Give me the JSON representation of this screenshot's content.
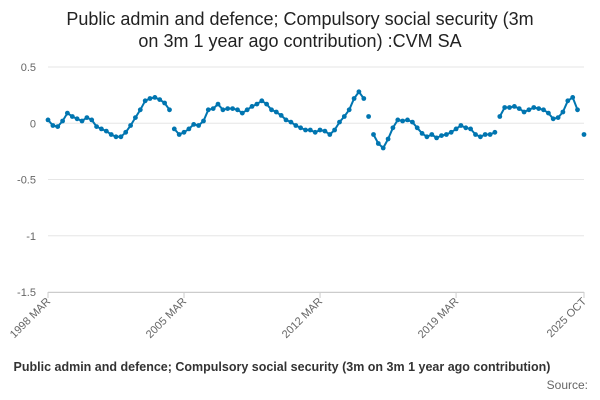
{
  "chart_data": {
    "type": "line",
    "title_lines": [
      "Public admin and defence; Compulsory social security (3m",
      "on 3m 1 year ago contribution) :CVM SA"
    ],
    "xlabel": "",
    "ylabel": "",
    "x_tick_labels": [
      "1998 MAR",
      "2005 MAR",
      "2012 MAR",
      "2019 MAR",
      "2025 OCT"
    ],
    "x_range": [
      "1998 MAR",
      "2025 OCT"
    ],
    "ylim": [
      -1.5,
      0.5
    ],
    "y_ticks": [
      0.5,
      0,
      -0.5,
      -1,
      -1.5
    ],
    "y_tick_labels": [
      "0.5",
      "0",
      "-0.5",
      "-1",
      "-1.5"
    ],
    "grid": true,
    "legend_placement": "bottom",
    "series": [
      {
        "name": "Public admin and defence; Compulsory social security (3m on 3m 1 year ago contribution)",
        "color": "#0075b0",
        "points": [
          [
            "1998 MAR",
            0.03
          ],
          [
            "1998 JUN",
            -0.02
          ],
          [
            "1998 SEP",
            -0.03
          ],
          [
            "1998 DEC",
            0.02
          ],
          [
            "1999 MAR",
            0.09
          ],
          [
            "1999 JUN",
            0.06
          ],
          [
            "1999 SEP",
            0.04
          ],
          [
            "1999 DEC",
            0.02
          ],
          [
            "2000 MAR",
            0.05
          ],
          [
            "2000 JUN",
            0.03
          ],
          [
            "2000 SEP",
            -0.03
          ],
          [
            "2000 DEC",
            -0.05
          ],
          [
            "2001 MAR",
            -0.07
          ],
          [
            "2001 JUN",
            -0.1
          ],
          [
            "2001 SEP",
            -0.12
          ],
          [
            "2001 DEC",
            -0.12
          ],
          [
            "2002 MAR",
            -0.08
          ],
          [
            "2002 JUN",
            -0.02
          ],
          [
            "2002 SEP",
            0.05
          ],
          [
            "2002 DEC",
            0.12
          ],
          [
            "2003 MAR",
            0.2
          ],
          [
            "2003 JUN",
            0.22
          ],
          [
            "2003 SEP",
            0.23
          ],
          [
            "2003 DEC",
            0.21
          ],
          [
            "2004 MAR",
            0.18
          ],
          [
            "2004 JUN",
            0.12
          ],
          [
            "2004 SEP",
            -0.05
          ],
          [
            "2004 DEC",
            -0.1
          ],
          [
            "2005 MAR",
            -0.08
          ],
          [
            "2005 JUN",
            -0.05
          ],
          [
            "2005 SEP",
            -0.01
          ],
          [
            "2005 DEC",
            -0.02
          ],
          [
            "2006 MAR",
            0.02
          ],
          [
            "2006 JUN",
            0.12
          ],
          [
            "2006 SEP",
            0.13
          ],
          [
            "2006 DEC",
            0.17
          ],
          [
            "2007 MAR",
            0.12
          ],
          [
            "2007 JUN",
            0.13
          ],
          [
            "2007 SEP",
            0.13
          ],
          [
            "2007 DEC",
            0.12
          ],
          [
            "2008 MAR",
            0.09
          ],
          [
            "2008 JUN",
            0.12
          ],
          [
            "2008 SEP",
            0.15
          ],
          [
            "2008 DEC",
            0.17
          ],
          [
            "2009 MAR",
            0.2
          ],
          [
            "2009 JUN",
            0.17
          ],
          [
            "2009 SEP",
            0.12
          ],
          [
            "2009 DEC",
            0.1
          ],
          [
            "2010 MAR",
            0.07
          ],
          [
            "2010 JUN",
            0.03
          ],
          [
            "2010 SEP",
            0.01
          ],
          [
            "2010 DEC",
            -0.02
          ],
          [
            "2011 MAR",
            -0.04
          ],
          [
            "2011 JUN",
            -0.06
          ],
          [
            "2011 SEP",
            -0.06
          ],
          [
            "2011 DEC",
            -0.08
          ],
          [
            "2012 MAR",
            -0.06
          ],
          [
            "2012 JUN",
            -0.07
          ],
          [
            "2012 SEP",
            -0.1
          ],
          [
            "2012 DEC",
            -0.06
          ],
          [
            "2013 MAR",
            0.01
          ],
          [
            "2013 JUN",
            0.06
          ],
          [
            "2013 SEP",
            0.12
          ],
          [
            "2013 DEC",
            0.22
          ],
          [
            "2014 MAR",
            0.28
          ],
          [
            "2014 JUN",
            0.22
          ],
          [
            "2014 SEP",
            0.06
          ],
          [
            "2014 DEC",
            -0.1
          ],
          [
            "2015 MAR",
            -0.18
          ],
          [
            "2015 JUN",
            -0.22
          ],
          [
            "2015 SEP",
            -0.14
          ],
          [
            "2015 DEC",
            -0.04
          ],
          [
            "2016 MAR",
            0.03
          ],
          [
            "2016 JUN",
            0.02
          ],
          [
            "2016 SEP",
            0.03
          ],
          [
            "2016 DEC",
            0.01
          ],
          [
            "2017 MAR",
            -0.04
          ],
          [
            "2017 JUN",
            -0.09
          ],
          [
            "2017 SEP",
            -0.12
          ],
          [
            "2017 DEC",
            -0.1
          ],
          [
            "2018 MAR",
            -0.13
          ],
          [
            "2018 JUN",
            -0.11
          ],
          [
            "2018 SEP",
            -0.1
          ],
          [
            "2018 DEC",
            -0.08
          ],
          [
            "2019 MAR",
            -0.05
          ],
          [
            "2019 JUN",
            -0.02
          ],
          [
            "2019 SEP",
            -0.04
          ],
          [
            "2019 DEC",
            -0.05
          ],
          [
            "2020 MAR",
            -0.1
          ],
          [
            "2020 JUN",
            -0.12
          ],
          [
            "2020 SEP",
            -0.1
          ],
          [
            "2020 DEC",
            -0.1
          ],
          [
            "2021 MAR",
            -0.08
          ],
          [
            "2021 JUN",
            0.06
          ],
          [
            "2021 SEP",
            0.14
          ],
          [
            "2021 DEC",
            0.14
          ],
          [
            "2022 MAR",
            0.15
          ],
          [
            "2022 JUN",
            0.13
          ],
          [
            "2022 SEP",
            0.1
          ],
          [
            "2022 DEC",
            0.12
          ],
          [
            "2023 MAR",
            0.14
          ],
          [
            "2023 JUN",
            0.13
          ],
          [
            "2023 SEP",
            0.12
          ],
          [
            "2023 DEC",
            0.09
          ],
          [
            "2024 MAR",
            0.04
          ],
          [
            "2024 JUN",
            0.05
          ],
          [
            "2024 SEP",
            0.1
          ],
          [
            "2024 DEC",
            0.2
          ],
          [
            "2025 MAR",
            0.23
          ],
          [
            "2025 JUN",
            0.12
          ],
          [
            "2025 OCT",
            -0.1
          ]
        ]
      }
    ]
  },
  "legend": {
    "label": "Public admin and defence; Compulsory social security (3m on 3m 1 year ago contribution)"
  },
  "footer": {
    "source_label": "Source:"
  }
}
